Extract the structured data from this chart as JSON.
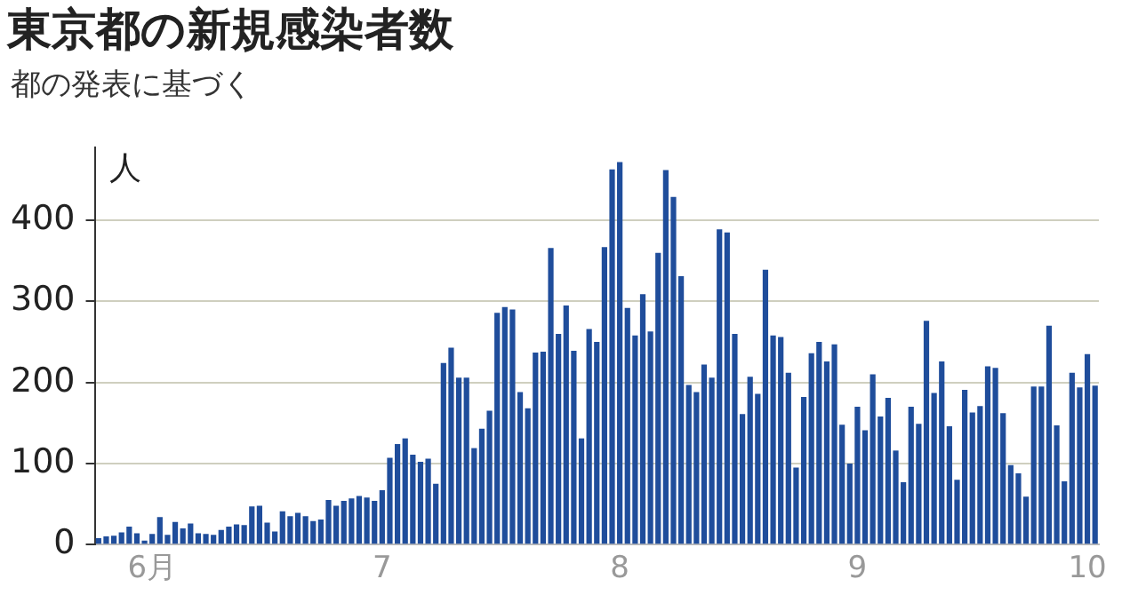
{
  "chart_data": {
    "type": "bar",
    "title": "東京都の新規感染者数",
    "subtitle": "都の発表に基づく",
    "ylabel": "人",
    "categories": [
      null,
      null,
      null,
      null,
      null,
      null,
      null,
      "6月",
      null,
      null,
      null,
      null,
      null,
      null,
      null,
      null,
      null,
      null,
      null,
      null,
      null,
      null,
      null,
      null,
      null,
      null,
      null,
      null,
      null,
      null,
      null,
      null,
      null,
      null,
      null,
      null,
      null,
      "7",
      null,
      null,
      null,
      null,
      null,
      null,
      null,
      null,
      null,
      null,
      null,
      null,
      null,
      null,
      null,
      null,
      null,
      null,
      null,
      null,
      null,
      null,
      null,
      null,
      null,
      null,
      null,
      null,
      null,
      null,
      "8",
      null,
      null,
      null,
      null,
      null,
      null,
      null,
      null,
      null,
      null,
      null,
      null,
      null,
      null,
      null,
      null,
      null,
      null,
      null,
      null,
      null,
      null,
      null,
      null,
      null,
      null,
      null,
      null,
      null,
      null,
      "9",
      null,
      null,
      null,
      null,
      null,
      null,
      null,
      null,
      null,
      null,
      null,
      null,
      null,
      null,
      null,
      null,
      null,
      null,
      null,
      null,
      null,
      null,
      null,
      null,
      null,
      null,
      null,
      null,
      null,
      "10",
      null
    ],
    "values": [
      8,
      10,
      11,
      15,
      22,
      14,
      5,
      13,
      34,
      12,
      28,
      20,
      26,
      14,
      13,
      12,
      18,
      22,
      25,
      24,
      47,
      48,
      27,
      16,
      41,
      35,
      39,
      35,
      29,
      31,
      55,
      48,
      54,
      57,
      60,
      58,
      54,
      67,
      107,
      124,
      131,
      111,
      102,
      106,
      75,
      224,
      243,
      206,
      206,
      119,
      143,
      165,
      286,
      293,
      290,
      188,
      168,
      237,
      238,
      366,
      260,
      295,
      239,
      131,
      266,
      250,
      367,
      463,
      472,
      292,
      258,
      309,
      263,
      360,
      462,
      429,
      331,
      197,
      188,
      222,
      206,
      389,
      385,
      260,
      161,
      207,
      186,
      339,
      258,
      256,
      212,
      95,
      182,
      236,
      250,
      226,
      247,
      148,
      100,
      170,
      141,
      210,
      158,
      181,
      116,
      77,
      170,
      149,
      276,
      187,
      226,
      146,
      80,
      191,
      163,
      171,
      220,
      218,
      162,
      98,
      88,
      59,
      195,
      195,
      270,
      147,
      78,
      212,
      194,
      235,
      196
    ],
    "color": "#1f4d9b",
    "ylim": [
      0,
      490
    ],
    "yticks": [
      0,
      100,
      200,
      300,
      400
    ],
    "grid": "y"
  }
}
